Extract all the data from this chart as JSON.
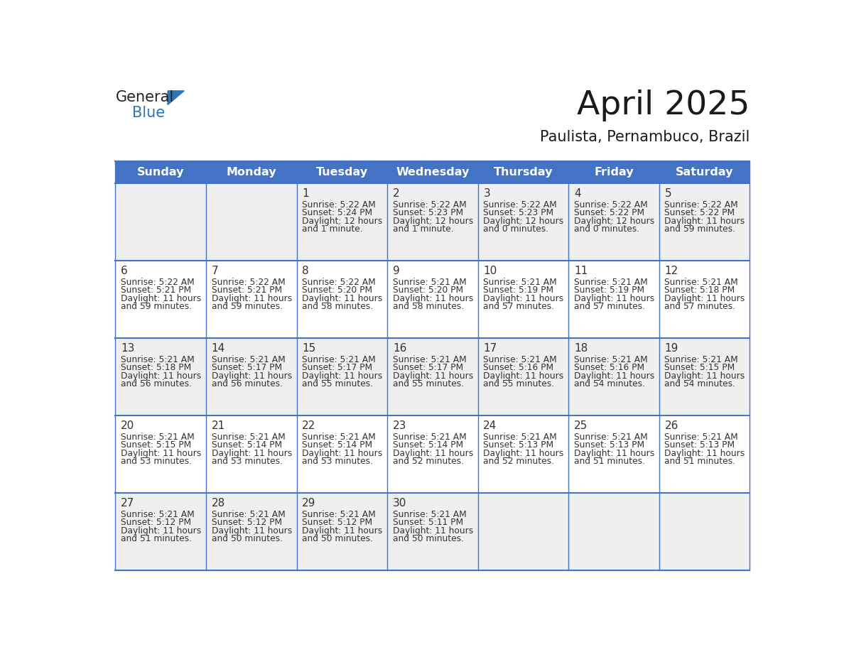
{
  "title": "April 2025",
  "subtitle": "Paulista, Pernambuco, Brazil",
  "header_bg": "#4472C4",
  "header_text_color": "#FFFFFF",
  "row_bg_odd": "#EFEFEF",
  "row_bg_even": "#FFFFFF",
  "day_names": [
    "Sunday",
    "Monday",
    "Tuesday",
    "Wednesday",
    "Thursday",
    "Friday",
    "Saturday"
  ],
  "grid_line_color": "#4472C4",
  "day_number_color": "#333333",
  "cell_text_color": "#333333",
  "logo_general_color": "#222222",
  "logo_blue_color": "#2E75B6",
  "logo_triangle_color": "#2E75B6",
  "weeks": [
    [
      {
        "day": "",
        "sunrise": "",
        "sunset": "",
        "daylight": ""
      },
      {
        "day": "",
        "sunrise": "",
        "sunset": "",
        "daylight": ""
      },
      {
        "day": "1",
        "sunrise": "5:22 AM",
        "sunset": "5:24 PM",
        "daylight": "12 hours and 1 minute."
      },
      {
        "day": "2",
        "sunrise": "5:22 AM",
        "sunset": "5:23 PM",
        "daylight": "12 hours and 1 minute."
      },
      {
        "day": "3",
        "sunrise": "5:22 AM",
        "sunset": "5:23 PM",
        "daylight": "12 hours and 0 minutes."
      },
      {
        "day": "4",
        "sunrise": "5:22 AM",
        "sunset": "5:22 PM",
        "daylight": "12 hours and 0 minutes."
      },
      {
        "day": "5",
        "sunrise": "5:22 AM",
        "sunset": "5:22 PM",
        "daylight": "11 hours and 59 minutes."
      }
    ],
    [
      {
        "day": "6",
        "sunrise": "5:22 AM",
        "sunset": "5:21 PM",
        "daylight": "11 hours and 59 minutes."
      },
      {
        "day": "7",
        "sunrise": "5:22 AM",
        "sunset": "5:21 PM",
        "daylight": "11 hours and 59 minutes."
      },
      {
        "day": "8",
        "sunrise": "5:22 AM",
        "sunset": "5:20 PM",
        "daylight": "11 hours and 58 minutes."
      },
      {
        "day": "9",
        "sunrise": "5:21 AM",
        "sunset": "5:20 PM",
        "daylight": "11 hours and 58 minutes."
      },
      {
        "day": "10",
        "sunrise": "5:21 AM",
        "sunset": "5:19 PM",
        "daylight": "11 hours and 57 minutes."
      },
      {
        "day": "11",
        "sunrise": "5:21 AM",
        "sunset": "5:19 PM",
        "daylight": "11 hours and 57 minutes."
      },
      {
        "day": "12",
        "sunrise": "5:21 AM",
        "sunset": "5:18 PM",
        "daylight": "11 hours and 57 minutes."
      }
    ],
    [
      {
        "day": "13",
        "sunrise": "5:21 AM",
        "sunset": "5:18 PM",
        "daylight": "11 hours and 56 minutes."
      },
      {
        "day": "14",
        "sunrise": "5:21 AM",
        "sunset": "5:17 PM",
        "daylight": "11 hours and 56 minutes."
      },
      {
        "day": "15",
        "sunrise": "5:21 AM",
        "sunset": "5:17 PM",
        "daylight": "11 hours and 55 minutes."
      },
      {
        "day": "16",
        "sunrise": "5:21 AM",
        "sunset": "5:17 PM",
        "daylight": "11 hours and 55 minutes."
      },
      {
        "day": "17",
        "sunrise": "5:21 AM",
        "sunset": "5:16 PM",
        "daylight": "11 hours and 55 minutes."
      },
      {
        "day": "18",
        "sunrise": "5:21 AM",
        "sunset": "5:16 PM",
        "daylight": "11 hours and 54 minutes."
      },
      {
        "day": "19",
        "sunrise": "5:21 AM",
        "sunset": "5:15 PM",
        "daylight": "11 hours and 54 minutes."
      }
    ],
    [
      {
        "day": "20",
        "sunrise": "5:21 AM",
        "sunset": "5:15 PM",
        "daylight": "11 hours and 53 minutes."
      },
      {
        "day": "21",
        "sunrise": "5:21 AM",
        "sunset": "5:14 PM",
        "daylight": "11 hours and 53 minutes."
      },
      {
        "day": "22",
        "sunrise": "5:21 AM",
        "sunset": "5:14 PM",
        "daylight": "11 hours and 53 minutes."
      },
      {
        "day": "23",
        "sunrise": "5:21 AM",
        "sunset": "5:14 PM",
        "daylight": "11 hours and 52 minutes."
      },
      {
        "day": "24",
        "sunrise": "5:21 AM",
        "sunset": "5:13 PM",
        "daylight": "11 hours and 52 minutes."
      },
      {
        "day": "25",
        "sunrise": "5:21 AM",
        "sunset": "5:13 PM",
        "daylight": "11 hours and 51 minutes."
      },
      {
        "day": "26",
        "sunrise": "5:21 AM",
        "sunset": "5:13 PM",
        "daylight": "11 hours and 51 minutes."
      }
    ],
    [
      {
        "day": "27",
        "sunrise": "5:21 AM",
        "sunset": "5:12 PM",
        "daylight": "11 hours and 51 minutes."
      },
      {
        "day": "28",
        "sunrise": "5:21 AM",
        "sunset": "5:12 PM",
        "daylight": "11 hours and 50 minutes."
      },
      {
        "day": "29",
        "sunrise": "5:21 AM",
        "sunset": "5:12 PM",
        "daylight": "11 hours and 50 minutes."
      },
      {
        "day": "30",
        "sunrise": "5:21 AM",
        "sunset": "5:11 PM",
        "daylight": "11 hours and 50 minutes."
      },
      {
        "day": "",
        "sunrise": "",
        "sunset": "",
        "daylight": ""
      },
      {
        "day": "",
        "sunrise": "",
        "sunset": "",
        "daylight": ""
      },
      {
        "day": "",
        "sunrise": "",
        "sunset": "",
        "daylight": ""
      }
    ]
  ]
}
